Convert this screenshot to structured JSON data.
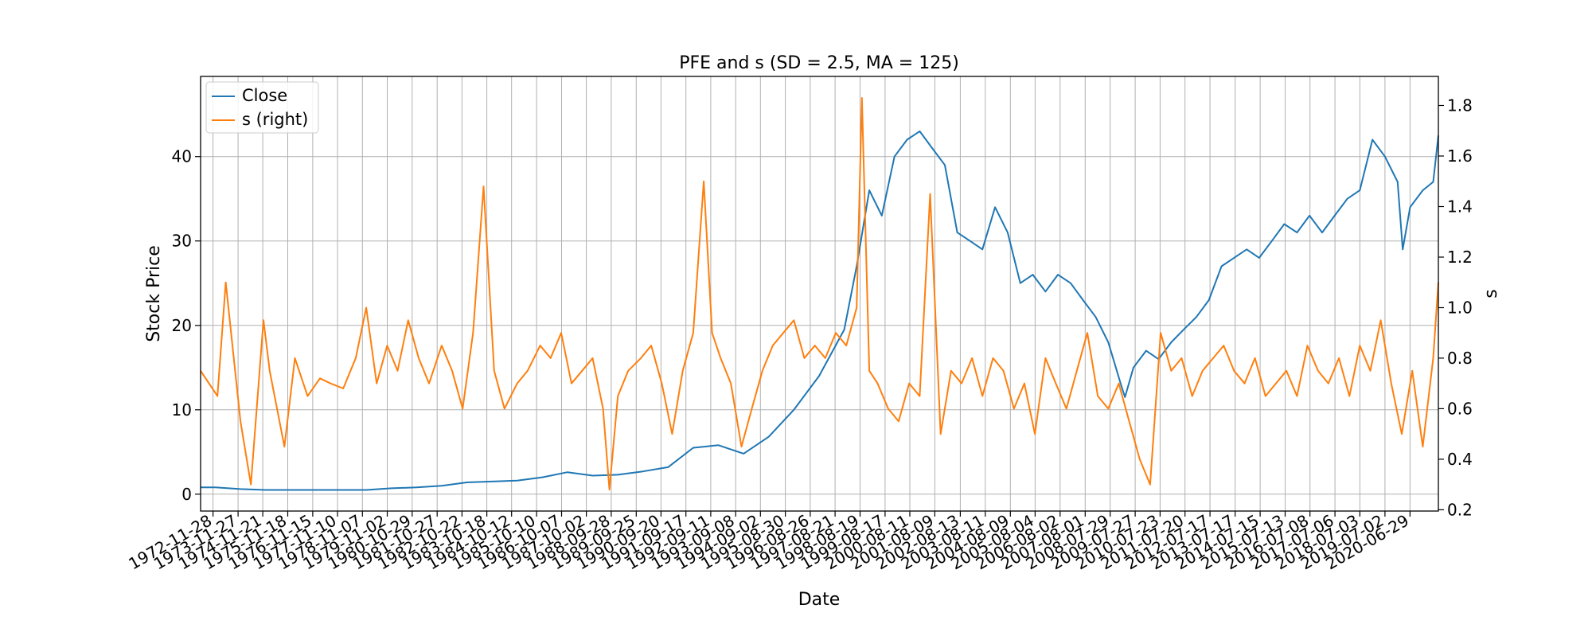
{
  "chart_data": {
    "type": "line",
    "title": "PFE and s (SD = 2.5, MA = 125)",
    "xlabel": "Date",
    "ylabel": "Stock Price",
    "ylabel_right": "s",
    "ylim": [
      -2,
      49.5
    ],
    "ylim_right": [
      0.195,
      1.915
    ],
    "xlim": [
      "1972-06-01",
      "2021-08-15"
    ],
    "grid": true,
    "legend_position": "upper left",
    "y_ticks": [
      0,
      10,
      20,
      30,
      40
    ],
    "y_right_ticks": [
      "0.2",
      "0.4",
      "0.6",
      "0.8",
      "1.0",
      "1.2",
      "1.4",
      "1.6",
      "1.8"
    ],
    "x_tick_labels": [
      "1972-11-28",
      "1973-11-27",
      "1974-11-21",
      "1975-11-18",
      "1976-11-15",
      "1977-11-10",
      "1978-11-07",
      "1979-11-02",
      "1980-10-29",
      "1981-10-27",
      "1982-10-22",
      "1983-10-18",
      "1984-10-12",
      "1985-10-10",
      "1986-10-07",
      "1987-10-02",
      "1988-09-28",
      "1989-09-25",
      "1990-09-20",
      "1991-09-17",
      "1992-09-11",
      "1993-09-08",
      "1994-09-02",
      "1995-08-30",
      "1996-08-26",
      "1997-08-21",
      "1998-08-19",
      "1999-08-17",
      "2000-08-11",
      "2001-08-09",
      "2002-08-13",
      "2003-08-11",
      "2004-08-09",
      "2005-08-04",
      "2006-08-02",
      "2007-08-01",
      "2008-07-29",
      "2009-07-27",
      "2010-07-23",
      "2011-07-20",
      "2012-07-17",
      "2013-07-17",
      "2014-07-15",
      "2015-07-13",
      "2016-07-08",
      "2017-07-06",
      "2018-07-03",
      "2019-07-02",
      "2020-06-29"
    ],
    "series": [
      {
        "name": "Close",
        "axis": "left",
        "color": "#1f77b4",
        "x": [
          "1972-06-01",
          "1973-01-01",
          "1974-01-01",
          "1975-01-01",
          "1976-01-01",
          "1977-01-01",
          "1978-01-01",
          "1979-01-01",
          "1980-01-01",
          "1981-01-01",
          "1982-01-01",
          "1983-01-01",
          "1984-01-01",
          "1985-01-01",
          "1986-01-01",
          "1987-01-01",
          "1988-01-01",
          "1989-01-01",
          "1990-01-01",
          "1991-01-01",
          "1992-01-01",
          "1993-01-01",
          "1994-01-01",
          "1995-01-01",
          "1996-01-01",
          "1997-01-01",
          "1998-01-01",
          "1998-07-01",
          "1999-01-01",
          "1999-07-01",
          "2000-01-01",
          "2000-07-01",
          "2001-01-01",
          "2001-07-01",
          "2002-01-01",
          "2002-07-01",
          "2003-01-01",
          "2003-07-01",
          "2004-01-01",
          "2004-07-01",
          "2005-01-01",
          "2005-07-01",
          "2006-01-01",
          "2006-07-01",
          "2007-01-01",
          "2007-07-01",
          "2008-01-01",
          "2008-07-01",
          "2009-01-01",
          "2009-03-01",
          "2009-07-01",
          "2010-01-01",
          "2010-07-01",
          "2011-01-01",
          "2011-07-01",
          "2012-01-01",
          "2012-07-01",
          "2013-01-01",
          "2013-07-01",
          "2014-01-01",
          "2014-07-01",
          "2015-01-01",
          "2015-07-01",
          "2016-01-01",
          "2016-07-01",
          "2017-01-01",
          "2017-07-01",
          "2018-01-01",
          "2018-07-01",
          "2019-01-01",
          "2019-07-01",
          "2020-01-01",
          "2020-03-15",
          "2020-07-01",
          "2021-01-01",
          "2021-06-01",
          "2021-08-15"
        ],
        "y": [
          0.8,
          0.8,
          0.6,
          0.5,
          0.5,
          0.5,
          0.5,
          0.5,
          0.7,
          0.8,
          1.0,
          1.4,
          1.5,
          1.6,
          2.0,
          2.6,
          2.2,
          2.3,
          2.7,
          3.2,
          5.5,
          5.8,
          4.8,
          6.8,
          10.0,
          14.0,
          19.5,
          27.0,
          36.0,
          33.0,
          40.0,
          42.0,
          43.0,
          41.0,
          39.0,
          31.0,
          30.0,
          29.0,
          34.0,
          31.0,
          25.0,
          26.0,
          24.0,
          26.0,
          25.0,
          23.0,
          21.0,
          18.0,
          13.0,
          11.5,
          15.0,
          17.0,
          16.0,
          18.0,
          19.5,
          21.0,
          23.0,
          27.0,
          28.0,
          29.0,
          28.0,
          30.0,
          32.0,
          31.0,
          33.0,
          31.0,
          33.0,
          35.0,
          36.0,
          42.0,
          40.0,
          37.0,
          29.0,
          34.0,
          36.0,
          37.0,
          42.5
        ]
      },
      {
        "name": "s (right)",
        "axis": "right",
        "color": "#ff7f0e",
        "x": [
          "1972-06-01",
          "1973-02-01",
          "1973-06-01",
          "1974-01-01",
          "1974-06-01",
          "1974-12-01",
          "1975-03-01",
          "1975-10-01",
          "1976-03-01",
          "1976-09-01",
          "1977-03-01",
          "1977-08-01",
          "1978-02-01",
          "1978-08-01",
          "1979-01-01",
          "1979-06-01",
          "1979-11-01",
          "1980-04-01",
          "1980-09-01",
          "1981-02-01",
          "1981-07-01",
          "1982-01-01",
          "1982-06-01",
          "1982-11-01",
          "1983-04-01",
          "1983-09-01",
          "1984-02-01",
          "1984-07-01",
          "1985-01-01",
          "1985-06-01",
          "1985-12-01",
          "1986-05-01",
          "1986-10-01",
          "1987-03-01",
          "1987-08-01",
          "1988-01-01",
          "1988-06-01",
          "1988-09-01",
          "1989-01-01",
          "1989-06-01",
          "1989-12-01",
          "1990-05-01",
          "1990-10-01",
          "1991-03-01",
          "1991-08-01",
          "1992-01-01",
          "1992-06-01",
          "1992-10-01",
          "1993-02-01",
          "1993-07-01",
          "1993-12-01",
          "1994-05-01",
          "1994-10-01",
          "1995-03-01",
          "1995-08-01",
          "1996-01-01",
          "1996-06-01",
          "1996-11-01",
          "1997-04-01",
          "1997-09-01",
          "1998-02-01",
          "1998-07-01",
          "1998-09-15",
          "1999-01-01",
          "1999-05-01",
          "1999-10-01",
          "2000-03-01",
          "2000-08-01",
          "2001-01-01",
          "2001-06-01",
          "2001-11-01",
          "2002-04-01",
          "2002-09-01",
          "2003-02-01",
          "2003-07-01",
          "2003-12-01",
          "2004-05-01",
          "2004-10-01",
          "2005-03-01",
          "2005-08-01",
          "2006-01-01",
          "2006-06-01",
          "2006-11-01",
          "2007-04-01",
          "2007-09-01",
          "2008-02-01",
          "2008-07-01",
          "2008-12-01",
          "2009-05-01",
          "2009-10-01",
          "2010-03-01",
          "2010-08-01",
          "2011-01-01",
          "2011-06-01",
          "2011-11-01",
          "2012-04-01",
          "2012-09-01",
          "2013-02-01",
          "2013-07-01",
          "2013-12-01",
          "2014-05-01",
          "2014-10-01",
          "2015-03-01",
          "2015-08-01",
          "2016-01-01",
          "2016-06-01",
          "2016-11-01",
          "2017-04-01",
          "2017-09-01",
          "2018-02-01",
          "2018-07-01",
          "2018-12-01",
          "2019-05-01",
          "2019-10-01",
          "2020-03-01",
          "2020-08-01",
          "2021-01-01",
          "2021-06-01",
          "2021-08-15"
        ],
        "y": [
          0.75,
          0.65,
          1.1,
          0.55,
          0.3,
          0.95,
          0.75,
          0.45,
          0.8,
          0.65,
          0.72,
          0.7,
          0.68,
          0.8,
          1.0,
          0.7,
          0.85,
          0.75,
          0.95,
          0.8,
          0.7,
          0.85,
          0.75,
          0.6,
          0.9,
          1.48,
          0.75,
          0.6,
          0.7,
          0.75,
          0.85,
          0.8,
          0.9,
          0.7,
          0.75,
          0.8,
          0.6,
          0.28,
          0.65,
          0.75,
          0.8,
          0.85,
          0.7,
          0.5,
          0.75,
          0.9,
          1.5,
          0.9,
          0.8,
          0.7,
          0.45,
          0.6,
          0.75,
          0.85,
          0.9,
          0.95,
          0.8,
          0.85,
          0.8,
          0.9,
          0.85,
          1.0,
          1.83,
          0.75,
          0.7,
          0.6,
          0.55,
          0.7,
          0.65,
          1.45,
          0.5,
          0.75,
          0.7,
          0.8,
          0.65,
          0.8,
          0.75,
          0.6,
          0.7,
          0.5,
          0.8,
          0.7,
          0.6,
          0.75,
          0.9,
          0.65,
          0.6,
          0.7,
          0.55,
          0.4,
          0.3,
          0.9,
          0.75,
          0.8,
          0.65,
          0.75,
          0.8,
          0.85,
          0.75,
          0.7,
          0.8,
          0.65,
          0.7,
          0.75,
          0.65,
          0.85,
          0.75,
          0.7,
          0.8,
          0.65,
          0.85,
          0.75,
          0.95,
          0.7,
          0.5,
          0.75,
          0.45,
          0.8,
          1.1
        ]
      }
    ]
  }
}
